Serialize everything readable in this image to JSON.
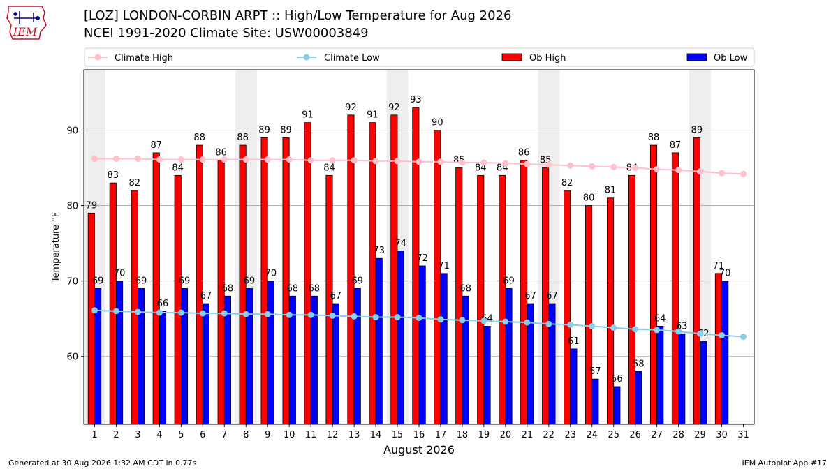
{
  "header": {
    "title": "[LOZ] LONDON-CORBIN ARPT :: High/Low Temperature for Aug 2026",
    "subtitle": "NCEI 1991-2020 Climate Site: USW00003849",
    "logo_text": "IEM"
  },
  "footer": {
    "generated": "Generated at 30 Aug 2026 1:32 AM CDT in 0.77s",
    "app": "IEM Autoplot App #17"
  },
  "colors": {
    "ob_high": "#ff0000",
    "ob_low": "#0000ff",
    "climate_high": "#ffc0cb",
    "climate_low": "#87ceeb",
    "weekend_shade": "#eeeeee",
    "grid": "#b0b0b0"
  },
  "chart_data": {
    "type": "bar",
    "xlabel": "August 2026",
    "ylabel": "Temperature °F",
    "ylim": [
      51,
      98
    ],
    "yticks": [
      60,
      70,
      80,
      90
    ],
    "grid": true,
    "legend": {
      "placement": "top",
      "entries": [
        "Climate High",
        "Climate Low",
        "Ob High",
        "Ob Low"
      ]
    },
    "categories": [
      "1",
      "2",
      "3",
      "4",
      "5",
      "6",
      "7",
      "8",
      "9",
      "10",
      "11",
      "12",
      "13",
      "14",
      "15",
      "16",
      "17",
      "18",
      "19",
      "20",
      "21",
      "22",
      "23",
      "24",
      "25",
      "26",
      "27",
      "28",
      "29",
      "30",
      "31"
    ],
    "shaded_days": [
      1,
      8,
      15,
      22,
      29
    ],
    "series": [
      {
        "name": "Ob High",
        "kind": "bar",
        "values": [
          79,
          83,
          82,
          87,
          84,
          88,
          86,
          88,
          89,
          89,
          91,
          84,
          92,
          91,
          92,
          93,
          90,
          85,
          84,
          84,
          86,
          85,
          82,
          80,
          81,
          84,
          88,
          87,
          89,
          71,
          null
        ]
      },
      {
        "name": "Ob Low",
        "kind": "bar",
        "values": [
          69,
          70,
          69,
          66,
          69,
          67,
          68,
          69,
          70,
          68,
          68,
          67,
          69,
          73,
          74,
          72,
          71,
          68,
          64,
          69,
          67,
          67,
          61,
          57,
          56,
          58,
          64,
          63,
          62,
          70,
          null
        ]
      },
      {
        "name": "Climate High",
        "kind": "line",
        "values": [
          86.2,
          86.2,
          86.2,
          86.1,
          86.1,
          86.1,
          86.1,
          86.1,
          86.1,
          86.1,
          86.0,
          86.0,
          86.0,
          85.9,
          85.9,
          85.8,
          85.8,
          85.7,
          85.7,
          85.6,
          85.5,
          85.4,
          85.3,
          85.2,
          85.1,
          85.0,
          84.8,
          84.7,
          84.5,
          84.3,
          84.2
        ]
      },
      {
        "name": "Climate Low",
        "kind": "line",
        "values": [
          66.1,
          66.0,
          65.9,
          65.8,
          65.8,
          65.7,
          65.7,
          65.6,
          65.6,
          65.5,
          65.5,
          65.4,
          65.3,
          65.2,
          65.2,
          65.1,
          64.9,
          64.8,
          64.7,
          64.6,
          64.5,
          64.3,
          64.2,
          64.0,
          63.8,
          63.6,
          63.5,
          63.3,
          63.0,
          62.8,
          62.6
        ]
      }
    ]
  }
}
